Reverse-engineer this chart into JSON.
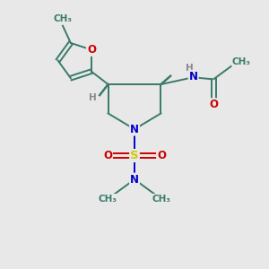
{
  "bg_color": "#e8e8e8",
  "atom_colors": {
    "C": "#3a7a6a",
    "N": "#0000cc",
    "O": "#cc0000",
    "S": "#cccc00",
    "H": "#888888"
  },
  "bond_color": "#3a7a6a",
  "figsize": [
    3.0,
    3.0
  ],
  "dpi": 100,
  "xlim": [
    0,
    10
  ],
  "ylim": [
    0,
    10
  ]
}
